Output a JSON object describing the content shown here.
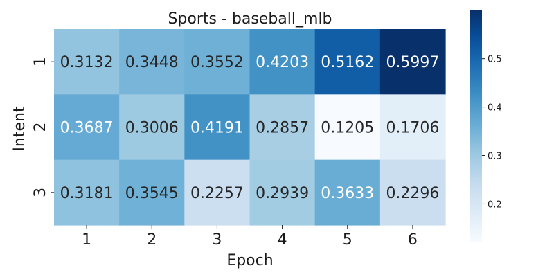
{
  "chart_data": {
    "type": "heatmap",
    "title": "Sports - baseball_mlb",
    "xlabel": "Epoch",
    "ylabel": "Intent",
    "x_categories": [
      "1",
      "2",
      "3",
      "4",
      "5",
      "6"
    ],
    "y_categories": [
      "1",
      "2",
      "3"
    ],
    "values": [
      [
        0.3132,
        0.3448,
        0.3552,
        0.4203,
        0.5162,
        0.5997
      ],
      [
        0.3687,
        0.3006,
        0.4191,
        0.2857,
        0.1205,
        0.1706
      ],
      [
        0.3181,
        0.3545,
        0.2257,
        0.2939,
        0.3633,
        0.2296
      ]
    ],
    "value_labels": [
      [
        "0.3132",
        "0.3448",
        "0.3552",
        "0.4203",
        "0.5162",
        "0.5997"
      ],
      [
        "0.3687",
        "0.3006",
        "0.4191",
        "0.2857",
        "0.1205",
        "0.1706"
      ],
      [
        "0.3181",
        "0.3545",
        "0.2257",
        "0.2939",
        "0.3633",
        "0.2296"
      ]
    ],
    "colormap": "Blues",
    "vmin": 0.1205,
    "vmax": 0.5997,
    "colorbar_ticks": [
      "0.2",
      "0.3",
      "0.4",
      "0.5"
    ],
    "colorbar_tick_values": [
      0.2,
      0.3,
      0.4,
      0.5
    ]
  }
}
